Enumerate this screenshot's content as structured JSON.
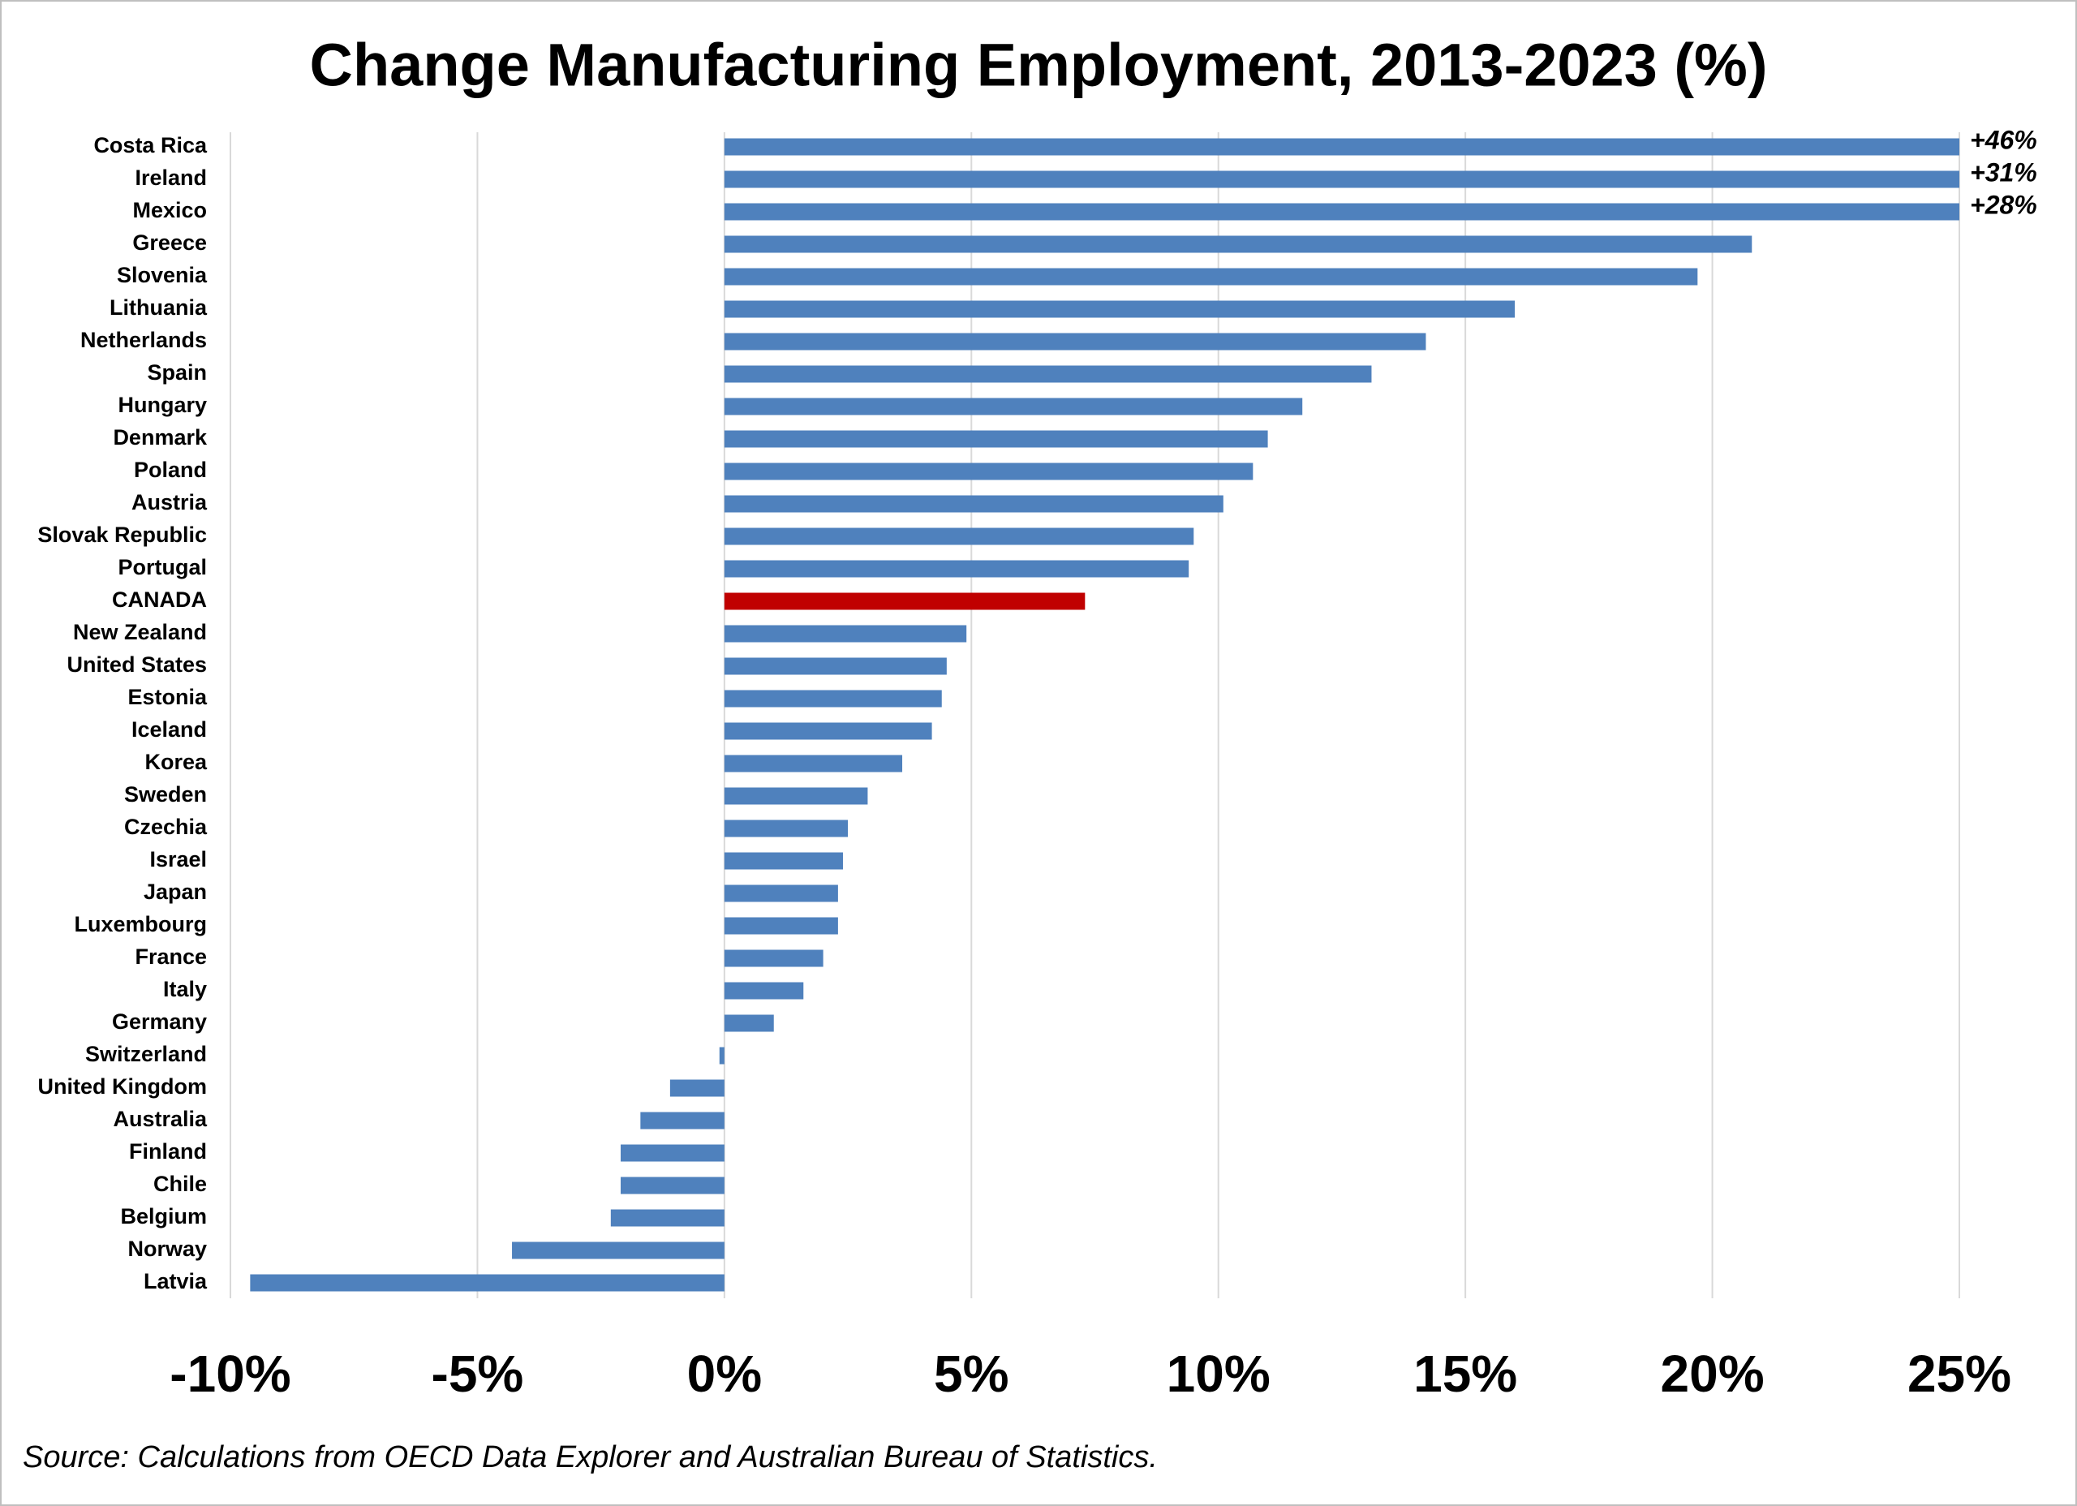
{
  "chart_data": {
    "type": "barh",
    "title": "Change Manufacturing Employment, 2013-2023 (%)",
    "categories": [
      "Costa Rica",
      "Ireland",
      "Mexico",
      "Greece",
      "Slovenia",
      "Lithuania",
      "Netherlands",
      "Spain",
      "Hungary",
      "Denmark",
      "Poland",
      "Austria",
      "Slovak Republic",
      "Portugal",
      "CANADA",
      "New Zealand",
      "United States",
      "Estonia",
      "Iceland",
      "Korea",
      "Sweden",
      "Czechia",
      "Israel",
      "Japan",
      "Luxembourg",
      "France",
      "Italy",
      "Germany",
      "Switzerland",
      "United Kingdom",
      "Australia",
      "Finland",
      "Chile",
      "Belgium",
      "Norway",
      "Latvia"
    ],
    "values": [
      46,
      31,
      28,
      20.8,
      19.7,
      16.0,
      14.2,
      13.1,
      11.7,
      11.0,
      10.7,
      10.1,
      9.5,
      9.4,
      7.3,
      4.9,
      4.5,
      4.4,
      4.2,
      3.6,
      2.9,
      2.5,
      2.4,
      2.3,
      2.3,
      2.0,
      1.6,
      1.0,
      -0.1,
      -1.1,
      -1.7,
      -2.1,
      -2.1,
      -2.3,
      -4.3,
      -9.6
    ],
    "value_labels": [
      "+46%",
      "+31%",
      "+28%",
      null,
      null,
      null,
      null,
      null,
      null,
      null,
      null,
      null,
      null,
      null,
      null,
      null,
      null,
      null,
      null,
      null,
      null,
      null,
      null,
      null,
      null,
      null,
      null,
      null,
      null,
      null,
      null,
      null,
      null,
      null,
      null,
      null
    ],
    "colors": [
      "#4f81bd",
      "#4f81bd",
      "#4f81bd",
      "#4f81bd",
      "#4f81bd",
      "#4f81bd",
      "#4f81bd",
      "#4f81bd",
      "#4f81bd",
      "#4f81bd",
      "#4f81bd",
      "#4f81bd",
      "#4f81bd",
      "#4f81bd",
      "#c00000",
      "#4f81bd",
      "#4f81bd",
      "#4f81bd",
      "#4f81bd",
      "#4f81bd",
      "#4f81bd",
      "#4f81bd",
      "#4f81bd",
      "#4f81bd",
      "#4f81bd",
      "#4f81bd",
      "#4f81bd",
      "#4f81bd",
      "#4f81bd",
      "#4f81bd",
      "#4f81bd",
      "#4f81bd",
      "#4f81bd",
      "#4f81bd",
      "#4f81bd",
      "#4f81bd"
    ],
    "xlim": [
      -10,
      25
    ],
    "xticks": [
      {
        "value": -10,
        "label": "-10%"
      },
      {
        "value": -5,
        "label": "-5%"
      },
      {
        "value": 0,
        "label": "0%"
      },
      {
        "value": 5,
        "label": "5%"
      },
      {
        "value": 10,
        "label": "10%"
      },
      {
        "value": 15,
        "label": "15%"
      },
      {
        "value": 20,
        "label": "20%"
      },
      {
        "value": 25,
        "label": "25%"
      }
    ],
    "grid": true,
    "source": "Source: Calculations from OECD Data Explorer and Australian Bureau of Statistics."
  }
}
